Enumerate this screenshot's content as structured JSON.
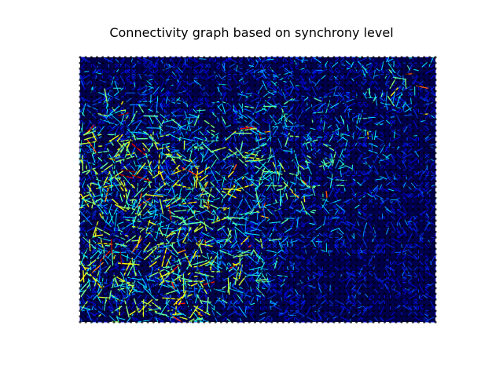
{
  "figure": {
    "title": "Connectivity graph based on synchrony level",
    "background_color": "#ffffff",
    "plot_background_color": "#00004a"
  },
  "chart_data": {
    "type": "network-grid",
    "grid": {
      "columns": 64,
      "rows": 48
    },
    "axes_visible": false,
    "node_color": "#000000",
    "edge_colormap": "jet",
    "colormap_stops": [
      "#00007f",
      "#0000ff",
      "#007fff",
      "#00ffff",
      "#7fff7f",
      "#ffff00",
      "#ff7f00",
      "#ff0000",
      "#7f0000"
    ],
    "dense_regions": [
      {
        "cx": 0.1,
        "cy": 0.8,
        "r": 0.2,
        "strength": 1.0
      },
      {
        "cx": 0.18,
        "cy": 0.6,
        "r": 0.16,
        "strength": 0.9
      },
      {
        "cx": 0.55,
        "cy": 0.38,
        "r": 0.22,
        "strength": 0.7
      },
      {
        "cx": 0.08,
        "cy": 0.25,
        "r": 0.12,
        "strength": 0.6
      },
      {
        "cx": 0.9,
        "cy": 0.1,
        "r": 0.1,
        "strength": 0.5
      },
      {
        "cx": 0.35,
        "cy": 0.85,
        "r": 0.14,
        "strength": 0.5
      }
    ]
  }
}
